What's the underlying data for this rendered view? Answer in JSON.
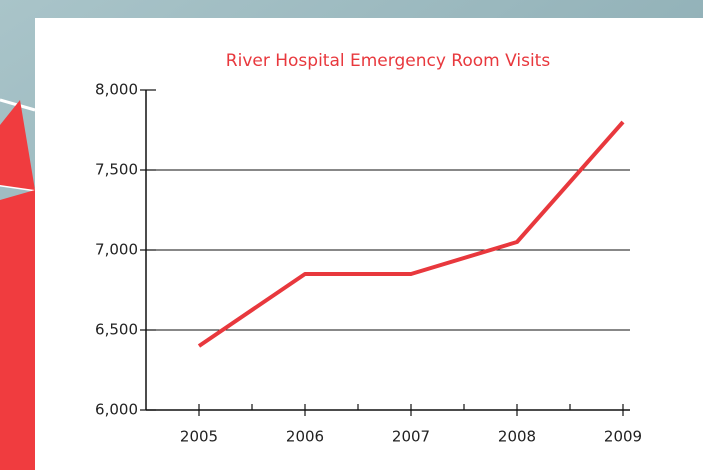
{
  "chart_data": {
    "type": "line",
    "title": "River Hospital Emergency Room Visits",
    "categories": [
      "2005",
      "2006",
      "2007",
      "2008",
      "2009"
    ],
    "series": [
      {
        "color": "#e8383d",
        "values": [
          6400,
          6850,
          6850,
          7050,
          7800
        ]
      }
    ],
    "ylim": [
      6000,
      8000
    ],
    "yticks": [
      {
        "value": 6000,
        "label": "6,000"
      },
      {
        "value": 6500,
        "label": "6,500"
      },
      {
        "value": 7000,
        "label": "7,000"
      },
      {
        "value": 7500,
        "label": "7,500"
      },
      {
        "value": 8000,
        "label": "8,000"
      }
    ],
    "grid": true
  }
}
